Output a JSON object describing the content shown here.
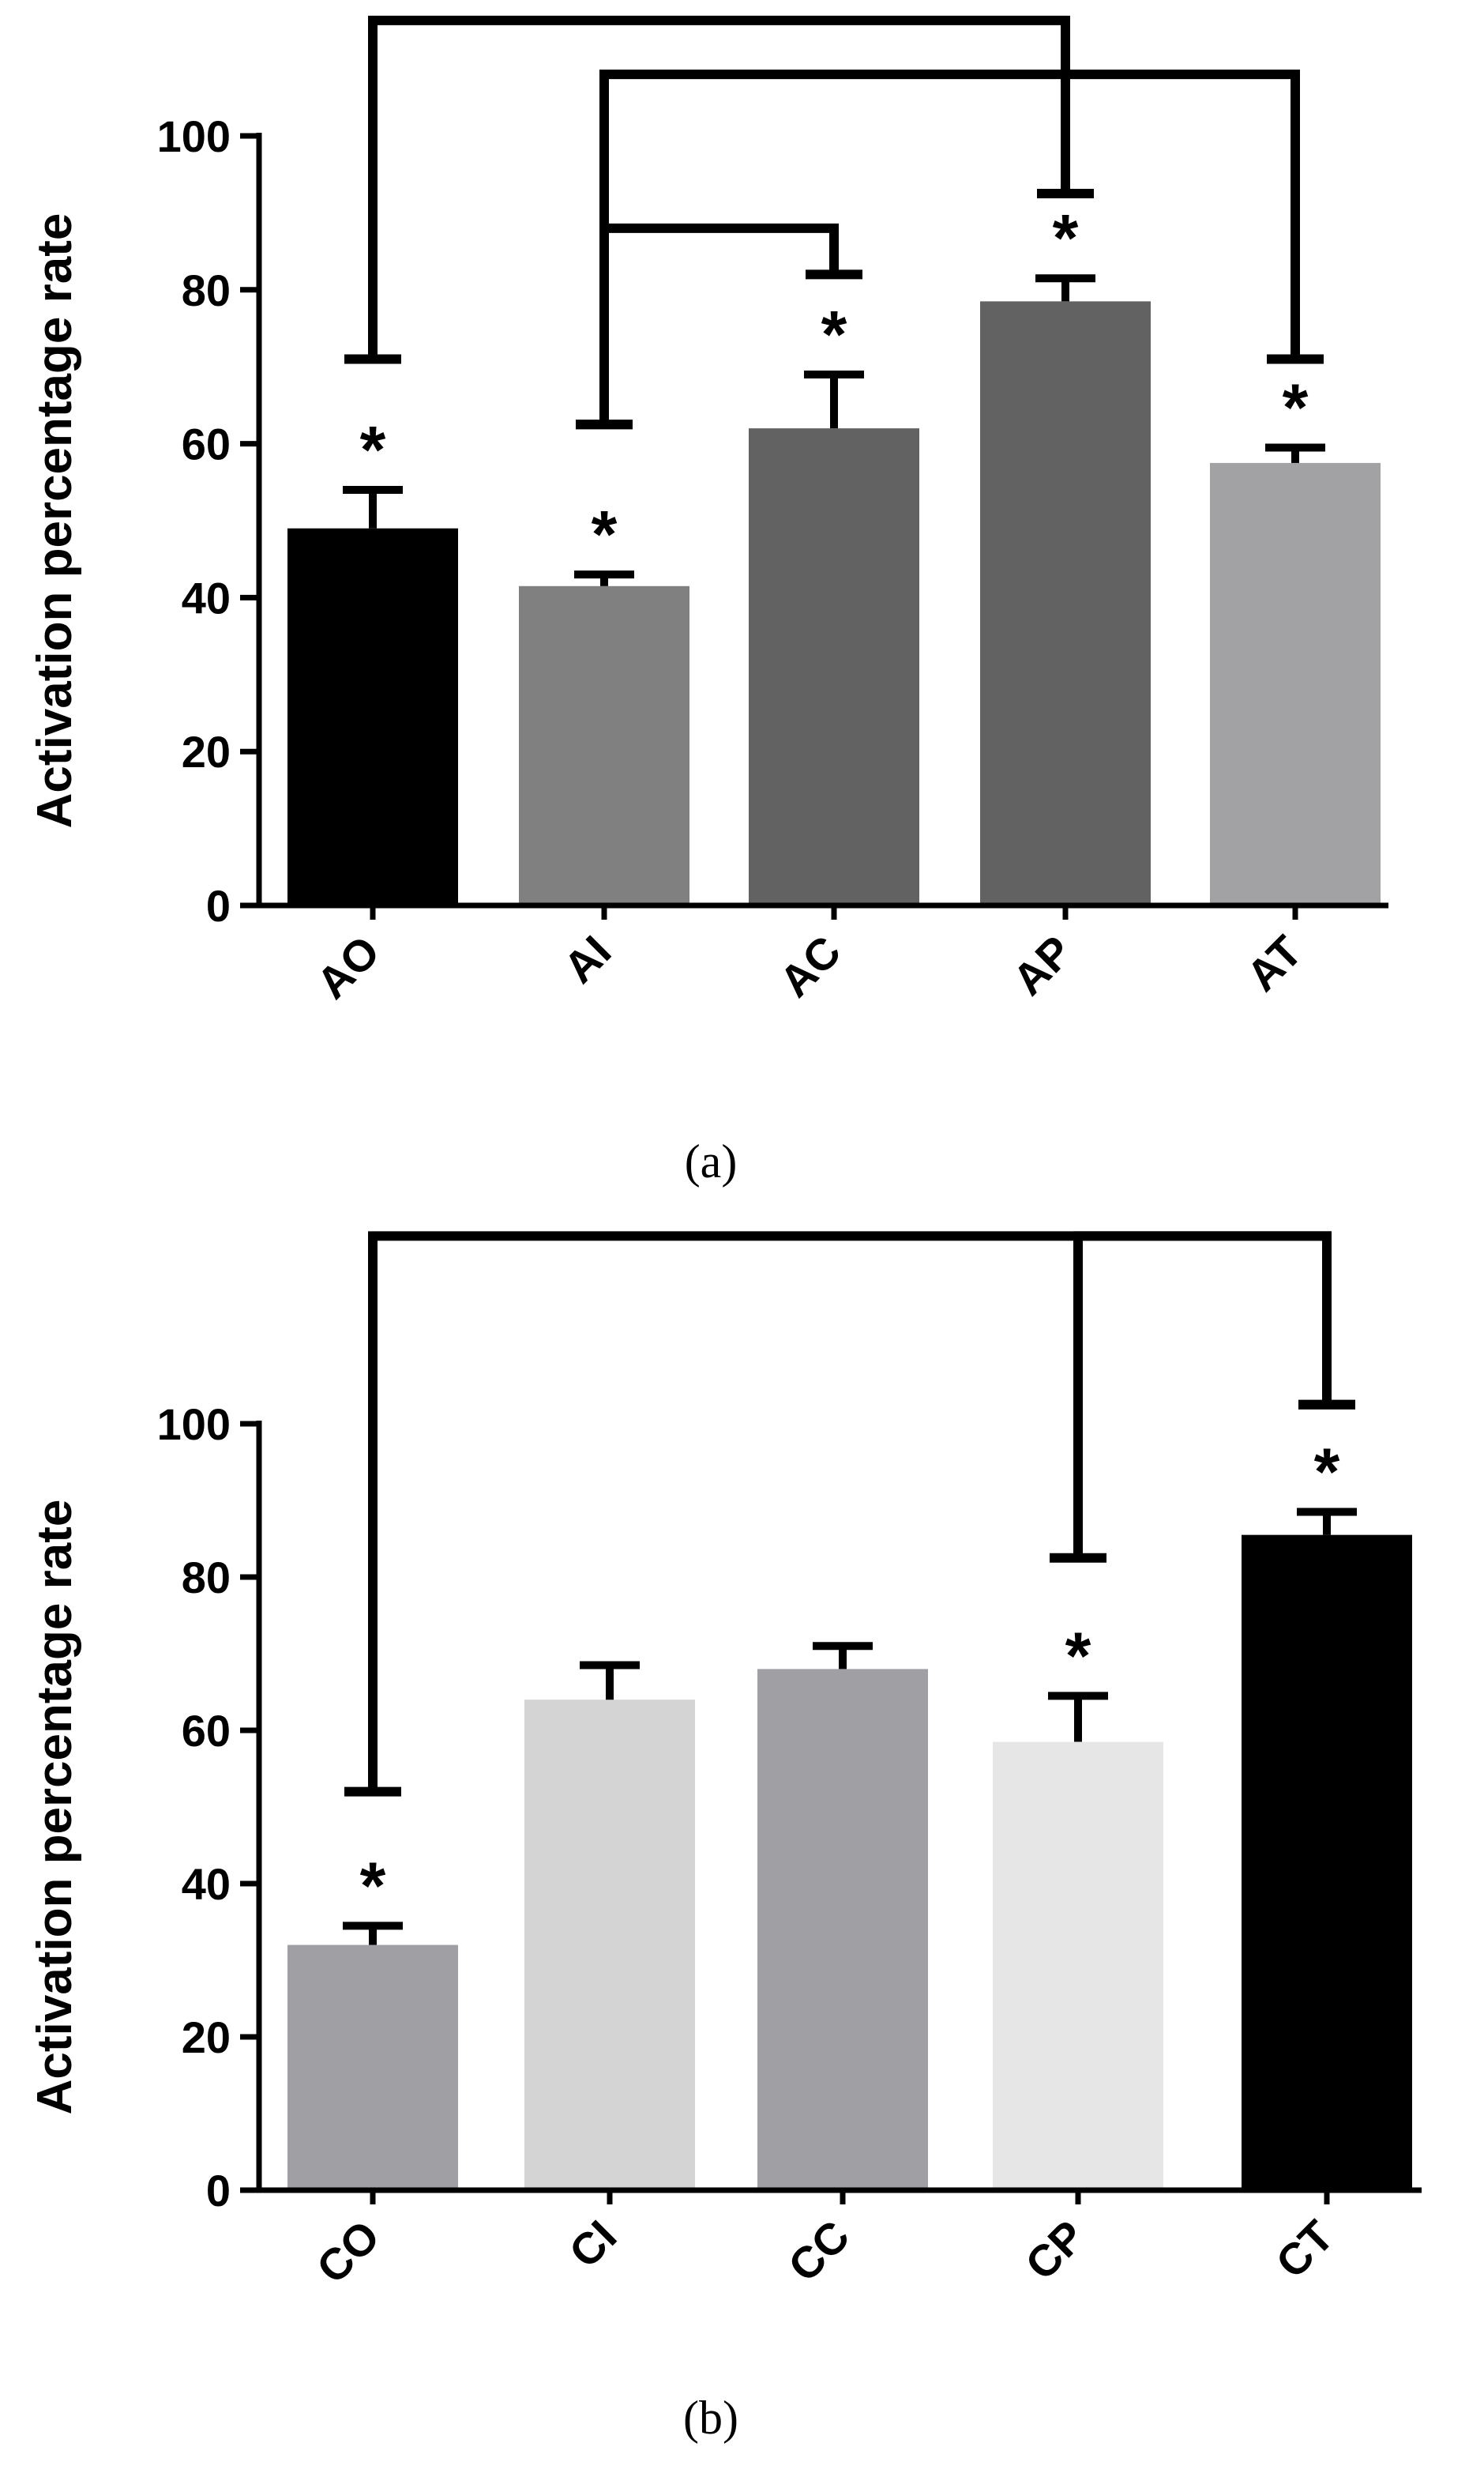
{
  "chart_data": [
    {
      "type": "bar",
      "panel_label": "(a)",
      "ylabel": "Activation percentage rate",
      "ylim": [
        0,
        100
      ],
      "yticks": [
        0,
        20,
        40,
        60,
        80,
        100
      ],
      "categories": [
        "AO",
        "AI",
        "AC",
        "AP",
        "AT"
      ],
      "values": [
        49,
        41.5,
        62,
        78.5,
        57.5
      ],
      "errors": [
        5,
        1.5,
        7,
        3,
        2
      ],
      "colors": [
        "#000000",
        "#808080",
        "#626262",
        "#626262",
        "#a2a2a4"
      ],
      "significance": [
        "*",
        "*",
        "*",
        "*",
        "*"
      ],
      "brackets": [
        {
          "from": "AO",
          "to": "AP",
          "from_drop_value": 71,
          "to_drop_value": 92.5,
          "top_value": 115
        },
        {
          "from": "AI",
          "to": "AT",
          "from_drop_value": 62.5,
          "to_drop_value": 71,
          "top_value": 108
        },
        {
          "from": "AI",
          "to": "AC",
          "from_drop_value": 62.5,
          "to_drop_value": 82,
          "top_value": 88
        }
      ]
    },
    {
      "type": "bar",
      "panel_label": "(b)",
      "ylabel": "Activation percentage rate",
      "ylim": [
        0,
        100
      ],
      "yticks": [
        0,
        20,
        40,
        60,
        80,
        100
      ],
      "categories": [
        "CO",
        "CI",
        "CC",
        "CP",
        "CT"
      ],
      "values": [
        32,
        64,
        68,
        58.5,
        85.5
      ],
      "errors": [
        2.5,
        4.5,
        3,
        6,
        3
      ],
      "colors": [
        "#a0a0a4",
        "#d4d4d4",
        "#a0a0a4",
        "#e6e6e6",
        "#000000"
      ],
      "significance": [
        "*",
        "",
        "",
        "*",
        "*"
      ],
      "brackets": [
        {
          "from": "CO",
          "to": "CT",
          "from_drop_value": 52,
          "to_drop_value": 102.5,
          "top_value": 124.5
        },
        {
          "from": "CP",
          "to": "CT",
          "from_drop_value": 82.5,
          "to_drop_value": 102.5,
          "top_value": 124.5
        }
      ]
    }
  ]
}
